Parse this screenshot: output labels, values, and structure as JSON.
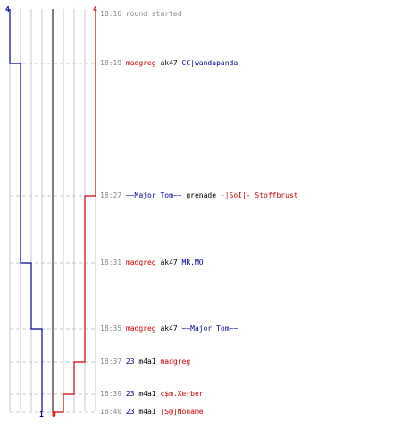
{
  "colors": {
    "team_red": "#cc0000",
    "team_blue": "#000099",
    "grid": "#c8c8c8",
    "dashed": "#c8c8c8",
    "center": "#555555",
    "time": "#888888",
    "text": "#000000"
  },
  "score_labels": {
    "top_blue": "4",
    "top_red": "4",
    "bottom_blue": "1",
    "bottom_red": "0"
  },
  "score_track": {
    "max": 4,
    "blue": [
      4,
      4,
      3,
      3,
      2,
      2,
      1,
      1,
      1,
      1
    ],
    "red": [
      4,
      4,
      4,
      3,
      3,
      3,
      2,
      1,
      0,
      0
    ]
  },
  "events": [
    {
      "time": "18:16",
      "actor": "",
      "actor_team": "",
      "weapon": "round started",
      "victim": "",
      "victim_team": ""
    },
    {
      "time": "18:19",
      "actor": "madgreg",
      "actor_team": "red",
      "weapon": "ak47",
      "victim": "CC|wandapanda",
      "victim_team": "blue"
    },
    {
      "time": "18:27",
      "actor": "~~Major Tom~~",
      "actor_team": "blue",
      "weapon": "grenade",
      "victim": "-|SoI|- Stoffbrust",
      "victim_team": "red"
    },
    {
      "time": "18:31",
      "actor": "madgreg",
      "actor_team": "red",
      "weapon": "ak47",
      "victim": "MR.MO",
      "victim_team": "blue"
    },
    {
      "time": "18:35",
      "actor": "madgreg",
      "actor_team": "red",
      "weapon": "ak47",
      "victim": "~~Major Tom~~",
      "victim_team": "blue"
    },
    {
      "time": "18:37",
      "actor": "23",
      "actor_team": "blue",
      "weapon": "m4a1",
      "victim": "madgreg",
      "victim_team": "red"
    },
    {
      "time": "18:39",
      "actor": "23",
      "actor_team": "blue",
      "weapon": "m4a1",
      "victim": "c$m.Xerber",
      "victim_team": "red"
    },
    {
      "time": "18:40",
      "actor": "23",
      "actor_team": "blue",
      "weapon": "m4a1",
      "victim": "[S@]Noname",
      "victim_team": "red"
    }
  ]
}
